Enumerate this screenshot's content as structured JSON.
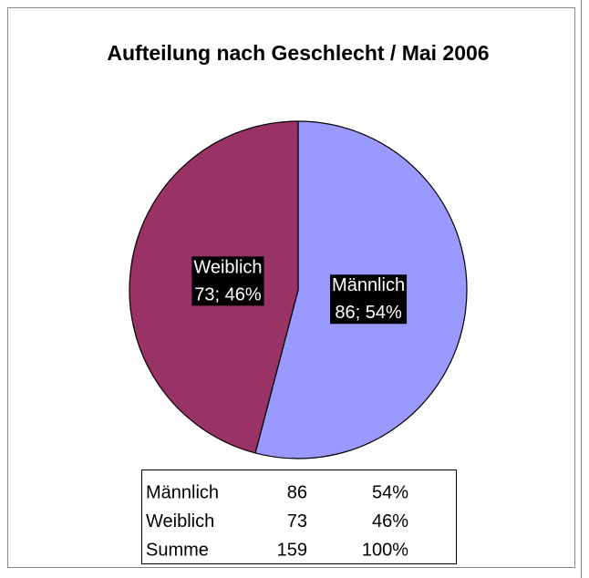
{
  "chart_data": {
    "type": "pie",
    "title": "Aufteilung nach Geschlecht / Mai 2006",
    "categories": [
      "Männlich",
      "Weiblich"
    ],
    "values": [
      86,
      73
    ],
    "value_labels": [
      "86; 54%",
      "73; 46%"
    ],
    "colors": [
      "#9999ff",
      "#993366"
    ],
    "table": {
      "rows": [
        [
          "Männlich",
          "86",
          "54%"
        ],
        [
          "Weiblich",
          "73",
          "46%"
        ],
        [
          "Summe",
          "159",
          "100%"
        ]
      ]
    }
  }
}
